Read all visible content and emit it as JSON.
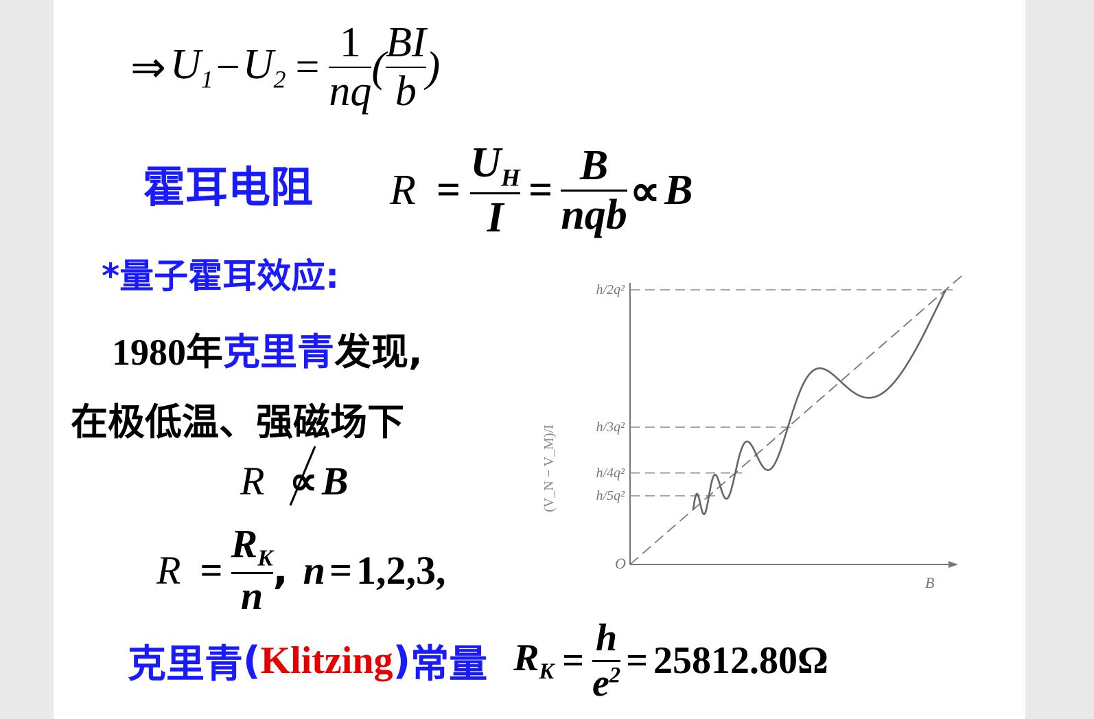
{
  "eq1": {
    "arrow": "⇒",
    "lhs_a": "U",
    "lhs_a_sub": "1",
    "minus": "−",
    "lhs_b": "U",
    "lhs_b_sub": "2",
    "equals": "=",
    "frac1_num": "1",
    "frac1_den": "nq",
    "paren_open": "(",
    "frac2_num": "BI",
    "frac2_den": "b",
    "paren_close": ")"
  },
  "hall_resistance": {
    "label": "霍耳电阻",
    "R": "R",
    "eq": "=",
    "frac1_num": "U",
    "frac1_num_sub": "H",
    "frac1_den": "I",
    "eq2": "=",
    "frac2_num": "B",
    "frac2_den": "nqb",
    "prop": "∝",
    "B": "B"
  },
  "quantum_title": "*量子霍耳效应:",
  "discovery": {
    "year": "1980",
    "nian": "年",
    "name": "克里青",
    "rest": "发现,"
  },
  "conditions": "在极低温、强磁场下",
  "not_prop": {
    "R": "R",
    "symbol": "∝",
    "B": "B"
  },
  "quantized": {
    "R": "R",
    "eq": "=",
    "num": "R",
    "num_sub": "K",
    "den": "n",
    "comma": ",",
    "n": "n",
    "eq2": "=",
    "values": "1,2,3,"
  },
  "klitzing": {
    "name": "克里青",
    "paren_open": "(",
    "latin": "Klitzing",
    "paren_close": ")",
    "const": "常量",
    "R": "R",
    "R_sub": "K",
    "eq": "=",
    "num": "h",
    "den": "e",
    "den_sup": "2",
    "eq2": "=",
    "value": "25812.80Ω"
  },
  "chart_data": {
    "type": "line",
    "xlabel": "B",
    "ylabel": "(V_N − V_M)/I",
    "origin_label": "O",
    "plateau_labels": [
      "h/2q²",
      "h/3q²",
      "h/4q²",
      "h/5q²"
    ],
    "series": [
      {
        "x": [
          0,
          0.5
        ],
        "y": [
          0,
          0.5
        ]
      },
      {
        "x": [
          0.2,
          0.25,
          0.3,
          0.33,
          0.38,
          0.45,
          0.5,
          0.6,
          0.7,
          0.8,
          0.9,
          1.0
        ],
        "y": [
          0.2,
          0.2,
          0.25,
          0.25,
          0.333,
          0.333,
          0.4,
          0.5,
          0.5,
          0.6,
          0.8,
          1.0
        ]
      }
    ],
    "plateaus": [
      1.0,
      0.5,
      0.333,
      0.25
    ],
    "grid": false
  }
}
